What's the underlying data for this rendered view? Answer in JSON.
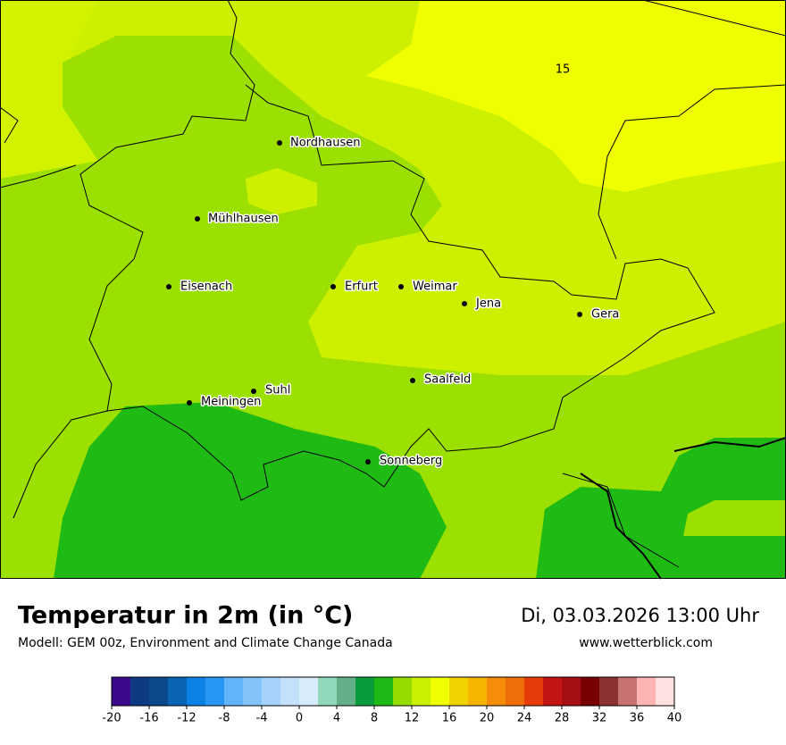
{
  "map": {
    "cities": [
      "Nordhausen",
      "Mühlhausen",
      "Eisenach",
      "Erfurt",
      "Weimar",
      "Jena",
      "Gera",
      "Saalfeld",
      "Suhl",
      "Meiningen",
      "Sonneberg"
    ],
    "contour_label": "15"
  },
  "footer": {
    "title": "Temperatur in 2m (in °C)",
    "subtitle": "Modell: GEM 00z, Environment and Climate Change Canada",
    "date": "Di, 03.03.2026 13:00 Uhr",
    "website": "www.wetterblick.com"
  },
  "colorbar": {
    "ticks": [
      -20,
      -16,
      -12,
      -8,
      -4,
      0,
      4,
      8,
      12,
      16,
      20,
      24,
      28,
      32,
      36,
      40
    ],
    "colors": [
      "#3b0a8c",
      "#0e3a80",
      "#0a4a8a",
      "#0a64b4",
      "#0a82e6",
      "#2896f5",
      "#64b4fa",
      "#82c3fa",
      "#a5d2fa",
      "#c3e1fa",
      "#d7ebfa",
      "#91d7b9",
      "#64af87",
      "#0a9b3c",
      "#1eb914",
      "#96dc00",
      "#c8f000",
      "#f0ff00",
      "#f0d200",
      "#f5b400",
      "#f58c0a",
      "#f06e0a",
      "#e63c0a",
      "#c31414",
      "#a50f14",
      "#780000",
      "#8c3232",
      "#c87373",
      "#ffb4b4",
      "#ffe1e1"
    ]
  }
}
